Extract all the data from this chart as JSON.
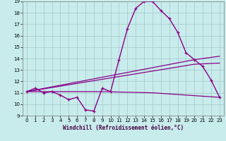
{
  "xlabel": "Windchill (Refroidissement éolien,°C)",
  "bg_color": "#c8ecec",
  "line_color": "#880088",
  "grid_color": "#aacccc",
  "xlim": [
    -0.5,
    23.5
  ],
  "ylim": [
    9,
    19
  ],
  "yticks": [
    9,
    10,
    11,
    12,
    13,
    14,
    15,
    16,
    17,
    18,
    19
  ],
  "xticks": [
    0,
    1,
    2,
    3,
    4,
    5,
    6,
    7,
    8,
    9,
    10,
    11,
    12,
    13,
    14,
    15,
    16,
    17,
    18,
    19,
    20,
    21,
    22,
    23
  ],
  "curve1_x": [
    0,
    1,
    2,
    3,
    4,
    5,
    6,
    7,
    8,
    9,
    10,
    11,
    12,
    13,
    14,
    15,
    16,
    17,
    18,
    19,
    20,
    21,
    22,
    23
  ],
  "curve1_y": [
    11.1,
    11.4,
    11.0,
    11.1,
    10.8,
    10.4,
    10.6,
    9.5,
    9.4,
    11.4,
    11.1,
    13.9,
    16.6,
    18.4,
    19.0,
    19.0,
    18.2,
    17.5,
    16.3,
    14.5,
    13.9,
    13.3,
    12.1,
    10.6
  ],
  "line2_x": [
    0,
    20,
    23
  ],
  "line2_y": [
    11.1,
    13.9,
    14.2
  ],
  "line3_x": [
    0,
    20,
    23
  ],
  "line3_y": [
    11.1,
    13.5,
    13.6
  ],
  "line4_x": [
    0,
    9,
    15,
    23
  ],
  "line4_y": [
    11.1,
    11.1,
    11.0,
    10.6
  ]
}
